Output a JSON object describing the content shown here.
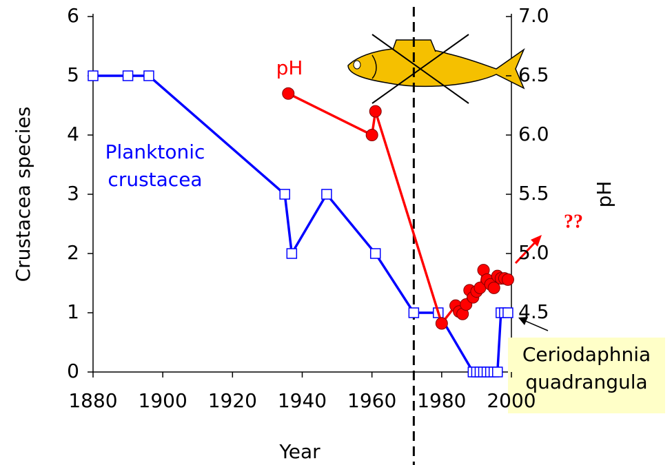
{
  "chart_data": {
    "type": "line",
    "xlabel": "Year",
    "ylabel": "Crustacea species",
    "y2label": "pH",
    "xlim": [
      1880,
      2000
    ],
    "xticks": [
      1880,
      1900,
      1920,
      1940,
      1960,
      1980,
      2000
    ],
    "ylim": [
      0,
      6
    ],
    "yticks": [
      0,
      1,
      2,
      3,
      4,
      5,
      6
    ],
    "y2lim": [
      4,
      7
    ],
    "y2ticks": [
      4.5,
      {
        "value": 5,
        "label": "5.0"
      },
      5.5,
      {
        "value": 6,
        "label": "6.0"
      },
      6.5,
      {
        "value": 7,
        "label": "7.0"
      }
    ],
    "event_year": 1972,
    "series": [
      {
        "name": [
          "Planktonic",
          "crustacea"
        ],
        "color": "#0000ff",
        "marker": "square",
        "x": [
          1880,
          1890,
          1896,
          1935,
          1937,
          1947,
          1961,
          1972,
          1979,
          1989,
          1990,
          1991,
          1992,
          1993,
          1994,
          1995,
          1996,
          1997,
          1998,
          1999
        ],
        "values": [
          5,
          5,
          5,
          3,
          2,
          3,
          2,
          1,
          1,
          0,
          0,
          0,
          0,
          0,
          0,
          0,
          0,
          1,
          1,
          1
        ]
      },
      {
        "name": "pH",
        "color": "#ff0000",
        "marker": "circle",
        "axis": "y2",
        "x": [
          1936,
          1960,
          1961,
          1980,
          1984,
          1985,
          1986,
          1987,
          1988,
          1989,
          1990,
          1991,
          1992,
          1993,
          1994,
          1995,
          1996,
          1997,
          1998,
          1999
        ],
        "values": [
          6.35,
          6.0,
          6.2,
          4.41,
          4.56,
          4.51,
          4.49,
          4.57,
          4.69,
          4.63,
          4.68,
          4.71,
          4.86,
          4.78,
          4.74,
          4.71,
          4.81,
          4.79,
          4.79,
          4.78
        ]
      }
    ],
    "annotations": {
      "question": "??",
      "species_note": [
        "Ceriodaphnia",
        "quadrangula"
      ]
    }
  }
}
